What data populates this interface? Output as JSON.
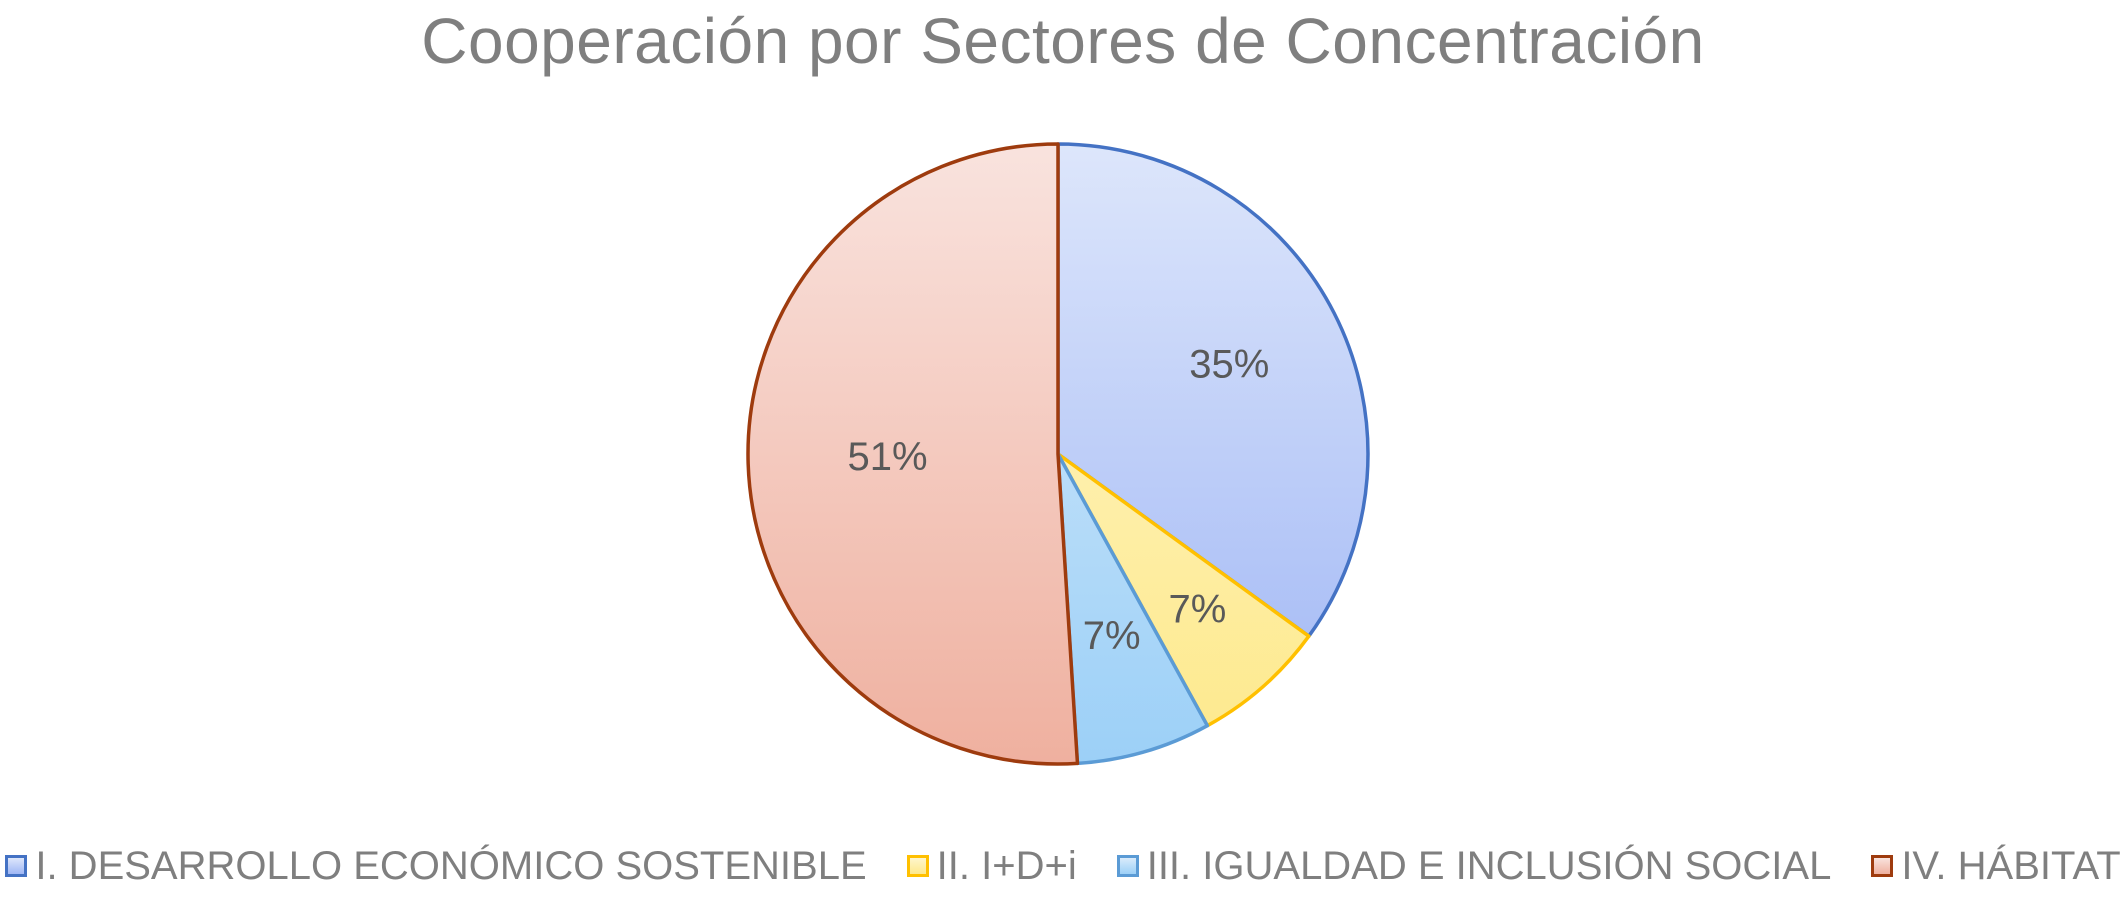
{
  "chart_data": {
    "type": "pie",
    "title": "Cooperación por Sectores de Concentración",
    "categories": [
      "I. DESARROLLO ECONÓMICO SOSTENIBLE",
      "II. I+D+i",
      "III. IGUALDAD E INCLUSIÓN SOCIAL",
      "IV. HÁBITAT"
    ],
    "values": [
      35,
      7,
      7,
      51
    ],
    "data_labels": [
      "35%",
      "7%",
      "7%",
      "51%"
    ],
    "colors": {
      "fill_top": [
        "#dde6fb",
        "#fff6cc",
        "#d9ebfb",
        "#f9e3de"
      ],
      "fill_bottom": [
        "#9fb6f5",
        "#fde98c",
        "#9cd0f7",
        "#efb09f"
      ],
      "stroke": [
        "#4472c4",
        "#ffc000",
        "#5b9bd5",
        "#9e3b0e"
      ]
    },
    "legend_position": "bottom"
  }
}
